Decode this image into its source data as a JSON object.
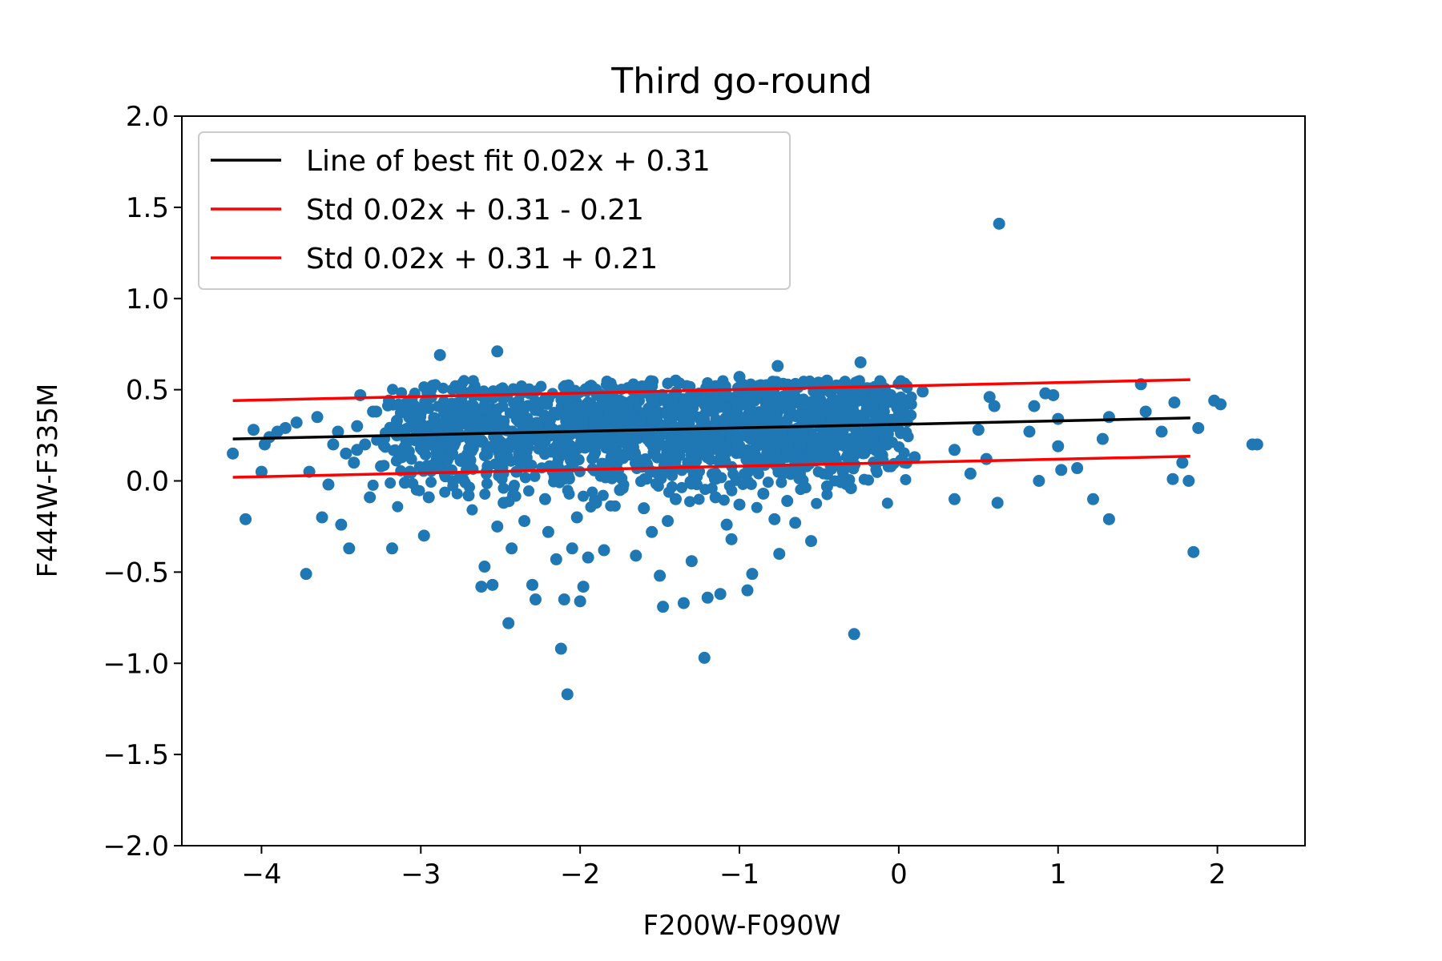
{
  "chart_data": {
    "type": "scatter",
    "title": "Third go-round",
    "xlabel": "F200W-F090W",
    "ylabel": "F444W-F335M",
    "xlim": [
      -4.5,
      2.55
    ],
    "ylim": [
      -2.0,
      2.0
    ],
    "x_ticks": [
      -4,
      -3,
      -2,
      -1,
      0,
      1,
      2
    ],
    "x_tick_labels": [
      "−4",
      "−3",
      "−2",
      "−1",
      "0",
      "1",
      "2"
    ],
    "y_ticks": [
      -2.0,
      -1.5,
      -1.0,
      -0.5,
      0.0,
      0.5,
      1.0,
      1.5,
      2.0
    ],
    "y_tick_labels": [
      "−2.0",
      "−1.5",
      "−1.0",
      "−0.5",
      "0.0",
      "0.5",
      "1.0",
      "1.5",
      "2.0"
    ],
    "grid": false,
    "legend_position": "top-left",
    "scatter_color": "#1f77b4",
    "lines": [
      {
        "name": "Line of best fit 0.02x + 0.31",
        "color": "#000000",
        "x": [
          -4.18,
          1.83
        ],
        "y": [
          0.23,
          0.345
        ]
      },
      {
        "name": "Std 0.02x + 0.31 - 0.21",
        "color": "#ff0000",
        "x": [
          -4.18,
          1.83
        ],
        "y": [
          0.02,
          0.135
        ]
      },
      {
        "name": "Std 0.02x + 0.31 + 0.21",
        "color": "#ff0000",
        "x": [
          -4.18,
          1.83
        ],
        "y": [
          0.44,
          0.555
        ]
      }
    ],
    "points": [
      [
        0.63,
        1.41
      ],
      [
        -2.52,
        0.71
      ],
      [
        -2.88,
        0.69
      ],
      [
        -0.76,
        0.63
      ],
      [
        -0.24,
        0.65
      ],
      [
        -4.18,
        0.15
      ],
      [
        -4.1,
        -0.21
      ],
      [
        -4.05,
        0.28
      ],
      [
        -4.0,
        0.05
      ],
      [
        -3.95,
        0.24
      ],
      [
        -3.9,
        0.27
      ],
      [
        -3.85,
        0.29
      ],
      [
        -3.78,
        0.32
      ],
      [
        -3.72,
        -0.51
      ],
      [
        -3.7,
        0.05
      ],
      [
        -3.65,
        0.35
      ],
      [
        -3.62,
        -0.2
      ],
      [
        -3.58,
        -0.02
      ],
      [
        -3.52,
        0.27
      ],
      [
        -3.5,
        -0.24
      ],
      [
        -3.47,
        0.15
      ],
      [
        -3.45,
        -0.37
      ],
      [
        -3.42,
        0.1
      ],
      [
        -3.4,
        0.3
      ],
      [
        -3.38,
        0.47
      ],
      [
        -3.35,
        0.2
      ],
      [
        -3.32,
        -0.09
      ],
      [
        -3.3,
        0.38
      ],
      [
        -3.25,
        0.08
      ],
      [
        -3.2,
        0.44
      ],
      [
        -3.18,
        -0.37
      ],
      [
        -3.15,
        0.25
      ],
      [
        -3.12,
        0.13
      ],
      [
        -3.1,
        -0.01
      ],
      [
        -3.05,
        0.32
      ],
      [
        -3.0,
        0.18
      ],
      [
        -2.98,
        -0.3
      ],
      [
        -2.95,
        -0.09
      ],
      [
        -2.9,
        0.21
      ],
      [
        -2.85,
        0.05
      ],
      [
        -2.82,
        0.42
      ],
      [
        -2.75,
        0.11
      ],
      [
        -2.7,
        -0.08
      ],
      [
        -2.65,
        0.29
      ],
      [
        -2.62,
        -0.58
      ],
      [
        -2.6,
        -0.47
      ],
      [
        -2.58,
        0.08
      ],
      [
        -2.55,
        -0.57
      ],
      [
        -2.52,
        -0.25
      ],
      [
        -2.5,
        0.15
      ],
      [
        -2.48,
        -0.12
      ],
      [
        -2.45,
        -0.78
      ],
      [
        -2.43,
        -0.37
      ],
      [
        -2.4,
        0.05
      ],
      [
        -2.35,
        -0.22
      ],
      [
        -2.3,
        -0.57
      ],
      [
        -2.28,
        -0.65
      ],
      [
        -2.25,
        0.22
      ],
      [
        -2.22,
        -0.1
      ],
      [
        -2.2,
        -0.28
      ],
      [
        -2.15,
        -0.43
      ],
      [
        -2.12,
        -0.92
      ],
      [
        -2.1,
        -0.65
      ],
      [
        -2.08,
        -1.17
      ],
      [
        -2.05,
        -0.37
      ],
      [
        -2.02,
        -0.2
      ],
      [
        -2.0,
        -0.66
      ],
      [
        -1.98,
        -0.58
      ],
      [
        -1.95,
        -0.42
      ],
      [
        -1.9,
        -0.12
      ],
      [
        -1.85,
        -0.38
      ],
      [
        -1.8,
        0.3
      ],
      [
        -1.75,
        -0.05
      ],
      [
        -1.7,
        0.18
      ],
      [
        -1.65,
        -0.41
      ],
      [
        -1.6,
        -0.15
      ],
      [
        -1.55,
        -0.28
      ],
      [
        -1.5,
        -0.52
      ],
      [
        -1.48,
        -0.69
      ],
      [
        -1.45,
        -0.22
      ],
      [
        -1.4,
        -0.1
      ],
      [
        -1.35,
        -0.67
      ],
      [
        -1.3,
        -0.44
      ],
      [
        -1.25,
        0.2
      ],
      [
        -1.22,
        -0.97
      ],
      [
        -1.2,
        -0.64
      ],
      [
        -1.15,
        -0.09
      ],
      [
        -1.12,
        -0.62
      ],
      [
        -1.08,
        -0.24
      ],
      [
        -1.05,
        -0.32
      ],
      [
        -1.0,
        -0.13
      ],
      [
        -0.95,
        -0.6
      ],
      [
        -0.92,
        -0.51
      ],
      [
        -0.9,
        0.14
      ],
      [
        -0.85,
        -0.07
      ],
      [
        -0.82,
        0.18
      ],
      [
        -0.78,
        -0.21
      ],
      [
        -0.75,
        -0.4
      ],
      [
        -0.7,
        -0.11
      ],
      [
        -0.65,
        -0.23
      ],
      [
        -0.62,
        0.2
      ],
      [
        -0.58,
        0.08
      ],
      [
        -0.55,
        -0.33
      ],
      [
        -0.5,
        0.12
      ],
      [
        -0.45,
        -0.03
      ],
      [
        -0.4,
        0.25
      ],
      [
        -0.35,
        0.05
      ],
      [
        -0.3,
        -0.04
      ],
      [
        -0.28,
        -0.84
      ],
      [
        -0.25,
        0.35
      ],
      [
        -0.22,
        0.24
      ],
      [
        -0.2,
        0.42
      ],
      [
        -0.15,
        0.46
      ],
      [
        -0.1,
        0.3
      ],
      [
        -0.05,
        0.08
      ],
      [
        0.0,
        0.36
      ],
      [
        0.05,
        0.52
      ],
      [
        0.1,
        0.13
      ],
      [
        0.15,
        0.49
      ],
      [
        0.35,
        -0.1
      ],
      [
        0.35,
        0.17
      ],
      [
        0.45,
        0.04
      ],
      [
        0.5,
        0.28
      ],
      [
        0.55,
        0.12
      ],
      [
        0.57,
        0.46
      ],
      [
        0.6,
        0.41
      ],
      [
        0.62,
        -0.12
      ],
      [
        0.82,
        0.27
      ],
      [
        0.85,
        0.41
      ],
      [
        0.88,
        0.0
      ],
      [
        0.92,
        0.48
      ],
      [
        0.97,
        0.47
      ],
      [
        1.0,
        0.34
      ],
      [
        1.0,
        0.19
      ],
      [
        1.02,
        0.06
      ],
      [
        1.12,
        0.07
      ],
      [
        1.22,
        -0.1
      ],
      [
        1.28,
        0.23
      ],
      [
        1.32,
        0.35
      ],
      [
        1.32,
        -0.21
      ],
      [
        1.52,
        0.53
      ],
      [
        1.55,
        0.38
      ],
      [
        1.65,
        0.27
      ],
      [
        1.72,
        0.01
      ],
      [
        1.73,
        0.43
      ],
      [
        1.78,
        0.1
      ],
      [
        1.82,
        0.0
      ],
      [
        1.85,
        -0.39
      ],
      [
        1.88,
        0.29
      ],
      [
        1.98,
        0.44
      ],
      [
        2.02,
        0.42
      ],
      [
        2.22,
        0.2
      ],
      [
        2.25,
        0.2
      ],
      [
        -3.98,
        0.2
      ],
      [
        -3.55,
        0.2
      ],
      [
        -3.4,
        0.17
      ],
      [
        -3.28,
        0.38
      ],
      [
        -3.15,
        0.33
      ],
      [
        -3.1,
        0.42
      ],
      [
        -2.95,
        0.4
      ],
      [
        -2.85,
        0.32
      ],
      [
        -2.7,
        0.38
      ],
      [
        -2.6,
        0.4
      ],
      [
        -2.5,
        0.5
      ],
      [
        -2.35,
        0.32
      ],
      [
        -2.2,
        0.45
      ],
      [
        -2.1,
        0.46
      ],
      [
        -1.9,
        0.5
      ],
      [
        -1.75,
        0.44
      ],
      [
        -1.55,
        0.52
      ],
      [
        -1.4,
        0.55
      ],
      [
        -1.2,
        0.48
      ],
      [
        -1.0,
        0.57
      ],
      [
        -0.85,
        0.48
      ],
      [
        -0.6,
        0.53
      ],
      [
        -0.45,
        0.55
      ],
      [
        -0.3,
        0.5
      ]
    ]
  }
}
